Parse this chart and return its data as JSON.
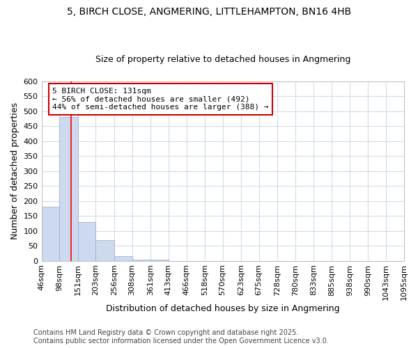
{
  "title1": "5, BIRCH CLOSE, ANGMERING, LITTLEHAMPTON, BN16 4HB",
  "title2": "Size of property relative to detached houses in Angmering",
  "xlabel": "Distribution of detached houses by size in Angmering",
  "ylabel": "Number of detached properties",
  "bin_edges": [
    46,
    98,
    151,
    203,
    256,
    308,
    361,
    413,
    466,
    518,
    570,
    623,
    675,
    728,
    780,
    833,
    885,
    938,
    990,
    1043,
    1095
  ],
  "bar_heights": [
    180,
    480,
    130,
    70,
    15,
    5,
    3,
    0,
    0,
    0,
    0,
    0,
    0,
    0,
    0,
    0,
    0,
    0,
    0,
    0
  ],
  "bar_color": "#ccd9ee",
  "bar_edge_color": "#99aacc",
  "grid_color": "#d0dce8",
  "background_color": "#ffffff",
  "plot_bg_color": "#ffffff",
  "red_line_x": 131,
  "annotation_text": "5 BIRCH CLOSE: 131sqm\n← 56% of detached houses are smaller (492)\n44% of semi-detached houses are larger (388) →",
  "annotation_box_color": "#ffffff",
  "annotation_border_color": "#cc0000",
  "ylim": [
    0,
    600
  ],
  "yticks": [
    0,
    50,
    100,
    150,
    200,
    250,
    300,
    350,
    400,
    450,
    500,
    550,
    600
  ],
  "footer_text": "Contains HM Land Registry data © Crown copyright and database right 2025.\nContains public sector information licensed under the Open Government Licence v3.0.",
  "title1_fontsize": 10,
  "title2_fontsize": 9,
  "axis_label_fontsize": 9,
  "tick_fontsize": 8,
  "annotation_fontsize": 8,
  "footer_fontsize": 7
}
